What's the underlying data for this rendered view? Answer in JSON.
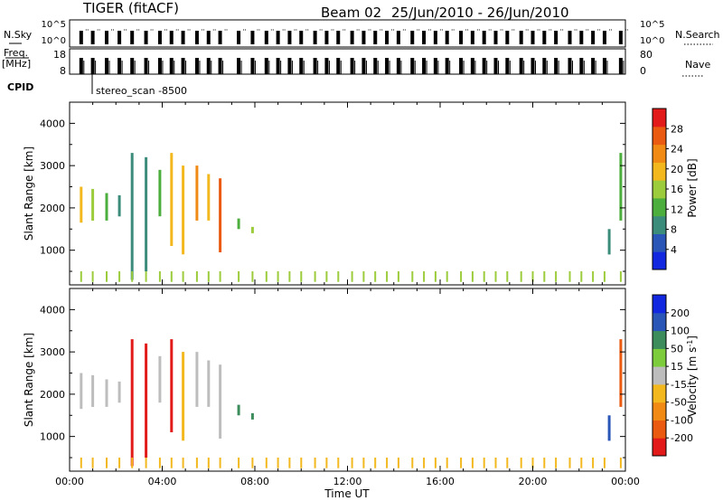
{
  "header": {
    "radar": "TIGER (fitACF)",
    "beam": "Beam 02",
    "date_range": "25/Jun/2010 - 26/Jun/2010"
  },
  "status_panel": {
    "nsky_label": "N.Sky",
    "nsky_ticks": [
      "10^5",
      "10^0"
    ],
    "nsearch_label": "N.Search",
    "nsearch_ticks": [
      "10^5",
      "10^0"
    ],
    "freq_label_1": "Freq.",
    "freq_label_2": "[MHz]",
    "freq_ticks": [
      "18",
      "8"
    ],
    "nave_label": "Nave",
    "nave_ticks": [
      "80",
      "0"
    ],
    "cpid_label": "CPID",
    "cpid_value": "stereo_scan -8500"
  },
  "colors": {
    "power_scale": [
      "#1228e0",
      "#2a56b8",
      "#3c8c7c",
      "#4cae3c",
      "#9ccc3c",
      "#f2b81e",
      "#f08a14",
      "#ea5a10",
      "#e21a1a"
    ],
    "velocity_scale": [
      "#e21a1a",
      "#ea5a10",
      "#f08a14",
      "#f2b81e",
      "#bdbdbd",
      "#7ccc3c",
      "#3c8c5c",
      "#2a56b8",
      "#1228e0"
    ]
  },
  "chart_data": [
    {
      "type": "heatmap",
      "name": "power",
      "title": "",
      "xlabel": "",
      "ylabel": "Slant Range [km]",
      "xlim": [
        "00:00",
        "24:00"
      ],
      "ylim": [
        180,
        4500
      ],
      "y_ticks": [
        1000,
        2000,
        3000,
        4000
      ],
      "x_ticks": [
        "00:00",
        "04:00",
        "08:00",
        "12:00",
        "16:00",
        "20:00",
        "00:00"
      ],
      "colorbar": {
        "label": "Power [dB]",
        "range": [
          0,
          32
        ],
        "tick_values": [
          4,
          8,
          12,
          16,
          20,
          24,
          28
        ],
        "ticks": [
          "4",
          "8",
          "12",
          "16",
          "20",
          "24",
          "28"
        ]
      },
      "scans": [
        {
          "hour": 0.5,
          "ranges": [
            [
              1650,
              2500
            ]
          ],
          "value": 18
        },
        {
          "hour": 1.0,
          "ranges": [
            [
              1700,
              2450
            ]
          ],
          "value": 16
        },
        {
          "hour": 1.6,
          "ranges": [
            [
              1700,
              2350
            ]
          ],
          "value": 14
        },
        {
          "hour": 2.15,
          "ranges": [
            [
              1800,
              2300
            ]
          ],
          "value": 10
        },
        {
          "hour": 2.7,
          "ranges": [
            [
              300,
              3300
            ]
          ],
          "value": 8
        },
        {
          "hour": 3.3,
          "ranges": [
            [
              500,
              3200
            ]
          ],
          "value": 10
        },
        {
          "hour": 3.9,
          "ranges": [
            [
              1800,
              2900
            ]
          ],
          "value": 14
        },
        {
          "hour": 4.4,
          "ranges": [
            [
              1100,
              3300
            ]
          ],
          "value": 20
        },
        {
          "hour": 4.9,
          "ranges": [
            [
              900,
              3000
            ]
          ],
          "value": 18
        },
        {
          "hour": 5.5,
          "ranges": [
            [
              1700,
              3000
            ]
          ],
          "value": 22
        },
        {
          "hour": 6.0,
          "ranges": [
            [
              1700,
              2800
            ]
          ],
          "value": 20
        },
        {
          "hour": 6.5,
          "ranges": [
            [
              950,
              2700
            ]
          ],
          "value": 26
        },
        {
          "hour": 7.3,
          "ranges": [
            [
              1500,
              1750
            ]
          ],
          "value": 14
        },
        {
          "hour": 7.9,
          "ranges": [
            [
              1400,
              1550
            ]
          ],
          "value": 16
        },
        {
          "hour": 23.3,
          "ranges": [
            [
              900,
              1500
            ]
          ],
          "value": 8
        },
        {
          "hour": 23.8,
          "ranges": [
            [
              1700,
              3300
            ]
          ],
          "value": 14
        }
      ],
      "near_range": {
        "range": [
          250,
          500
        ],
        "hours": [
          0.5,
          1.0,
          1.6,
          2.15,
          2.7,
          3.3,
          3.9,
          4.4,
          4.9,
          5.5,
          6.0,
          6.5,
          7.3,
          7.9,
          8.5,
          9.0,
          9.5,
          10.0,
          10.6,
          11.1,
          11.6,
          12.2,
          12.7,
          13.2,
          13.7,
          14.2,
          14.8,
          15.3,
          15.8,
          16.3,
          16.9,
          17.4,
          17.9,
          18.4,
          18.9,
          19.5,
          20.0,
          20.5,
          21.0,
          21.6,
          22.1,
          22.6,
          23.1,
          23.8
        ],
        "value": 16
      }
    },
    {
      "type": "heatmap",
      "name": "velocity",
      "title": "",
      "xlabel": "Time UT",
      "ylabel": "Slant Range [km]",
      "xlim": [
        "00:00",
        "24:00"
      ],
      "ylim": [
        180,
        4500
      ],
      "y_ticks": [
        1000,
        2000,
        3000,
        4000
      ],
      "x_ticks": [
        "00:00",
        "04:00",
        "08:00",
        "12:00",
        "16:00",
        "20:00",
        "00:00"
      ],
      "colorbar": {
        "label": "Velocity [m s^-1]",
        "bounds": [
          -300,
          -200,
          -100,
          -50,
          -15,
          15,
          50,
          100,
          200,
          300
        ],
        "ticks": [
          "200",
          "100",
          "50",
          "15",
          "-15",
          "-50",
          "-100",
          "-200"
        ]
      },
      "scans": [
        {
          "hour": 0.5,
          "ranges": [
            [
              1650,
              2500
            ]
          ],
          "value": 0
        },
        {
          "hour": 1.0,
          "ranges": [
            [
              1700,
              2450
            ]
          ],
          "value": 0
        },
        {
          "hour": 1.6,
          "ranges": [
            [
              1700,
              2350
            ]
          ],
          "value": 0
        },
        {
          "hour": 2.15,
          "ranges": [
            [
              1800,
              2300
            ]
          ],
          "value": 0
        },
        {
          "hour": 2.7,
          "ranges": [
            [
              300,
              3300
            ]
          ],
          "value": -250
        },
        {
          "hour": 3.3,
          "ranges": [
            [
              500,
              3200
            ]
          ],
          "value": -250
        },
        {
          "hour": 3.9,
          "ranges": [
            [
              1800,
              2900
            ]
          ],
          "value": 0
        },
        {
          "hour": 4.4,
          "ranges": [
            [
              1100,
              3300
            ]
          ],
          "value": -250
        },
        {
          "hour": 4.9,
          "ranges": [
            [
              900,
              3000
            ]
          ],
          "value": -40
        },
        {
          "hour": 5.5,
          "ranges": [
            [
              1700,
              3000
            ]
          ],
          "value": 0
        },
        {
          "hour": 6.0,
          "ranges": [
            [
              1700,
              2800
            ]
          ],
          "value": 0
        },
        {
          "hour": 6.5,
          "ranges": [
            [
              950,
              2700
            ]
          ],
          "value": 0
        },
        {
          "hour": 7.3,
          "ranges": [
            [
              1500,
              1750
            ]
          ],
          "value": 60
        },
        {
          "hour": 7.9,
          "ranges": [
            [
              1400,
              1550
            ]
          ],
          "value": 60
        },
        {
          "hour": 23.3,
          "ranges": [
            [
              900,
              1500
            ]
          ],
          "value": 150
        },
        {
          "hour": 23.8,
          "ranges": [
            [
              1700,
              3300
            ]
          ],
          "value": -150
        }
      ],
      "near_range": {
        "range": [
          250,
          500
        ],
        "hours": [
          0.5,
          1.0,
          1.6,
          2.15,
          2.7,
          3.3,
          3.9,
          4.4,
          4.9,
          5.5,
          6.0,
          6.5,
          7.3,
          7.9,
          8.5,
          9.0,
          9.5,
          10.0,
          10.6,
          11.1,
          11.6,
          12.2,
          12.7,
          13.2,
          13.7,
          14.2,
          14.8,
          15.3,
          15.8,
          16.3,
          16.9,
          17.4,
          17.9,
          18.4,
          18.9,
          19.5,
          20.0,
          20.5,
          21.0,
          21.6,
          22.1,
          22.6,
          23.1,
          23.8
        ],
        "value": -40
      }
    }
  ]
}
